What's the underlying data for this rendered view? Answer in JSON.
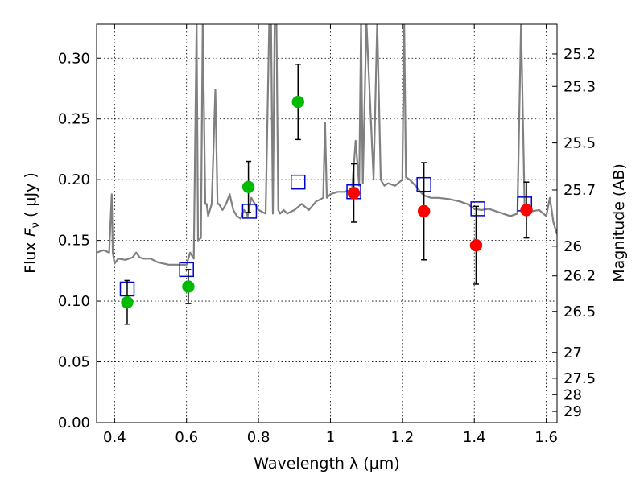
{
  "chart_data": {
    "type": "scatter",
    "xlabel": "Wavelength  λ (μm)",
    "ylabel": "Flux  F_ν  ( μJy )",
    "ylabel_parts": {
      "pre": "Flux  ",
      "var": "F",
      "sub": "ν",
      "post": "  ( μJy )"
    },
    "y2label": "Magnitude (AB)",
    "xlim": [
      0.35,
      1.63
    ],
    "ylim": [
      0.0,
      0.328
    ],
    "xticks": [
      0.4,
      0.6,
      0.8,
      1.0,
      1.2,
      1.4,
      1.6
    ],
    "xtick_labels": [
      "0.4",
      "0.6",
      "0.8",
      "1",
      "1.2",
      "1.4",
      "1.6"
    ],
    "yticks": [
      0.0,
      0.05,
      0.1,
      0.15,
      0.2,
      0.25,
      0.3
    ],
    "ytick_labels": [
      "0.00",
      "0.05",
      "0.10",
      "0.15",
      "0.20",
      "0.25",
      "0.30"
    ],
    "y2ticks": [
      {
        "label": "25.2",
        "flux": 0.3035
      },
      {
        "label": "25.3",
        "flux": 0.2768
      },
      {
        "label": "25.5",
        "flux": 0.2302
      },
      {
        "label": "25.7",
        "flux": 0.1915
      },
      {
        "label": "26",
        "flux": 0.1452
      },
      {
        "label": "26.2",
        "flux": 0.1208
      },
      {
        "label": "26.5",
        "flux": 0.0916
      },
      {
        "label": "27",
        "flux": 0.0578
      },
      {
        "label": "27.5",
        "flux": 0.0365
      },
      {
        "label": "28",
        "flux": 0.023
      },
      {
        "label": "29",
        "flux": 0.0092
      }
    ],
    "grid": true,
    "colors": {
      "model": "#808080",
      "bands_optical": "#00bb00",
      "bands_nir": "#ff0000",
      "model_photometry": "#0000cc",
      "error_bars": "#000000"
    },
    "series": [
      {
        "kind": "line",
        "color": "#808080",
        "x": [
          0.35,
          0.37,
          0.385,
          0.392,
          0.395,
          0.4,
          0.41,
          0.43,
          0.45,
          0.46,
          0.47,
          0.48,
          0.5,
          0.52,
          0.55,
          0.58,
          0.6,
          0.61,
          0.62,
          0.628,
          0.632,
          0.64,
          0.645,
          0.652,
          0.656,
          0.66,
          0.67,
          0.68,
          0.686,
          0.69,
          0.7,
          0.71,
          0.72,
          0.73,
          0.74,
          0.75,
          0.76,
          0.77,
          0.78,
          0.8,
          0.82,
          0.83,
          0.835,
          0.84,
          0.845,
          0.85,
          0.855,
          0.86,
          0.87,
          0.88,
          0.9,
          0.92,
          0.94,
          0.96,
          0.98,
          0.985,
          0.99,
          1.0,
          1.02,
          1.04,
          1.06,
          1.07,
          1.08,
          1.085,
          1.09,
          1.1,
          1.12,
          1.13,
          1.14,
          1.15,
          1.16,
          1.18,
          1.2,
          1.205,
          1.21,
          1.22,
          1.24,
          1.25,
          1.26,
          1.28,
          1.3,
          1.33,
          1.36,
          1.38,
          1.4,
          1.42,
          1.44,
          1.46,
          1.48,
          1.5,
          1.52,
          1.53,
          1.54,
          1.56,
          1.58,
          1.6,
          1.61,
          1.62,
          1.63
        ],
        "y": [
          0.14,
          0.142,
          0.14,
          0.188,
          0.14,
          0.131,
          0.135,
          0.134,
          0.136,
          0.14,
          0.136,
          0.135,
          0.135,
          0.132,
          0.13,
          0.13,
          0.13,
          0.14,
          0.135,
          0.33,
          0.15,
          0.152,
          0.33,
          0.18,
          0.18,
          0.17,
          0.18,
          0.274,
          0.18,
          0.18,
          0.175,
          0.18,
          0.188,
          0.175,
          0.17,
          0.168,
          0.175,
          0.17,
          0.185,
          0.175,
          0.172,
          0.33,
          0.33,
          0.172,
          0.33,
          0.33,
          0.175,
          0.172,
          0.175,
          0.172,
          0.175,
          0.18,
          0.175,
          0.182,
          0.185,
          0.247,
          0.185,
          0.188,
          0.19,
          0.19,
          0.192,
          0.232,
          0.195,
          0.33,
          0.197,
          0.33,
          0.2,
          0.33,
          0.2,
          0.195,
          0.197,
          0.195,
          0.2,
          0.33,
          0.202,
          0.2,
          0.194,
          0.19,
          0.187,
          0.185,
          0.185,
          0.184,
          0.182,
          0.18,
          0.176,
          0.175,
          0.176,
          0.174,
          0.172,
          0.17,
          0.172,
          0.33,
          0.175,
          0.174,
          0.175,
          0.17,
          0.185,
          0.165,
          0.155
        ]
      },
      {
        "name": "",
        "kind": "open-square",
        "color": "#0000cc",
        "points": [
          {
            "x": 0.435,
            "y": 0.11
          },
          {
            "x": 0.6,
            "y": 0.126
          },
          {
            "x": 0.775,
            "y": 0.174
          },
          {
            "x": 0.91,
            "y": 0.198
          },
          {
            "x": 1.065,
            "y": 0.19
          },
          {
            "x": 1.26,
            "y": 0.196
          },
          {
            "x": 1.41,
            "y": 0.176
          },
          {
            "x": 1.54,
            "y": 0.18
          }
        ]
      },
      {
        "name": "",
        "kind": "filled-circle",
        "color": "#00bb00",
        "points": [
          {
            "x": 0.435,
            "y": 0.099,
            "yerr": [
              0.018,
              0.018
            ]
          },
          {
            "x": 0.605,
            "y": 0.112,
            "yerr": [
              0.014,
              0.014
            ]
          },
          {
            "x": 0.772,
            "y": 0.194,
            "yerr": [
              0.021,
              0.021
            ]
          },
          {
            "x": 0.91,
            "y": 0.264,
            "yerr": [
              0.031,
              0.031
            ]
          }
        ]
      },
      {
        "name": "",
        "kind": "filled-circle",
        "color": "#ff0000",
        "points": [
          {
            "x": 1.065,
            "y": 0.189,
            "yerr": [
              0.024,
              0.024
            ]
          },
          {
            "x": 1.26,
            "y": 0.174,
            "yerr": [
              0.04,
              0.04
            ]
          },
          {
            "x": 1.405,
            "y": 0.146,
            "yerr": [
              0.032,
              0.032
            ]
          },
          {
            "x": 1.545,
            "y": 0.175,
            "yerr": [
              0.023,
              0.023
            ]
          }
        ]
      }
    ]
  }
}
